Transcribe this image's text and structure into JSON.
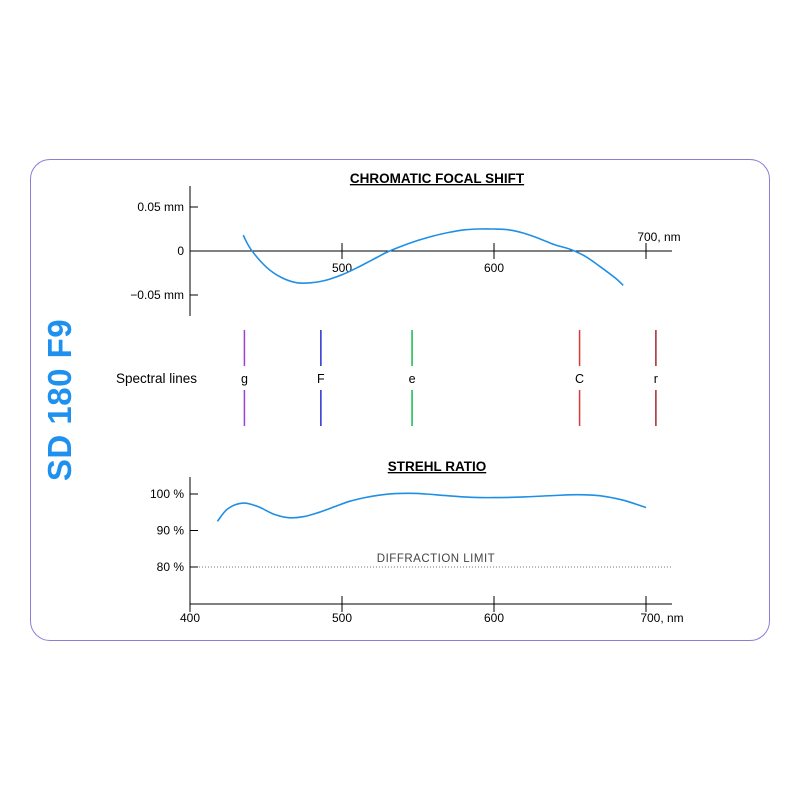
{
  "side_title": "SD 180 F9",
  "spectral": {
    "title": "Spectral lines",
    "lines": [
      {
        "label": "g",
        "wavelength": 435.8,
        "color": "#9b3fd8"
      },
      {
        "label": "F",
        "wavelength": 486.1,
        "color": "#2a2fd0"
      },
      {
        "label": "e",
        "wavelength": 546.1,
        "color": "#19b84a"
      },
      {
        "label": "C",
        "wavelength": 656.3,
        "color": "#d83a3a"
      },
      {
        "label": "r",
        "wavelength": 706.5,
        "color": "#a3282e"
      }
    ]
  },
  "chart_data": [
    {
      "type": "line",
      "title": "CHROMATIC FOCAL SHIFT",
      "xlabel": "",
      "ylabel": "",
      "xlim": [
        400,
        720
      ],
      "ylim": [
        -0.07,
        0.07
      ],
      "x_ticks": [
        500,
        600,
        700
      ],
      "x_tick_labels": [
        "500",
        "600",
        "700, nm"
      ],
      "y_ticks": [
        0.05,
        0,
        -0.05
      ],
      "y_tick_labels": [
        "0.05 mm",
        "0",
        "−0.05 mm"
      ],
      "series": [
        {
          "x": [
            435,
            440,
            450,
            460,
            470,
            480,
            490,
            500,
            510,
            520,
            530,
            540,
            550,
            560,
            570,
            580,
            590,
            600,
            610,
            620,
            630,
            640,
            650,
            660,
            670,
            680,
            685
          ],
          "y": [
            0.018,
            0.002,
            -0.018,
            -0.03,
            -0.036,
            -0.036,
            -0.033,
            -0.027,
            -0.019,
            -0.01,
            -0.001,
            0.006,
            0.012,
            0.017,
            0.021,
            0.024,
            0.025,
            0.025,
            0.024,
            0.02,
            0.014,
            0.007,
            0.002,
            -0.006,
            -0.018,
            -0.031,
            -0.039
          ]
        }
      ]
    },
    {
      "type": "line",
      "title": "STREHL RATIO",
      "xlabel": "",
      "ylabel": "",
      "xlim": [
        400,
        720
      ],
      "ylim": [
        70,
        105
      ],
      "x_ticks": [
        400,
        500,
        600,
        700
      ],
      "x_tick_labels": [
        "400",
        "500",
        "600",
        "700, nm"
      ],
      "y_ticks": [
        100,
        90,
        80
      ],
      "y_tick_labels": [
        "100 %",
        "90 %",
        "80 %"
      ],
      "annotation": "DIFFRACTION  LIMIT",
      "reference_line": 80,
      "series": [
        {
          "x": [
            418,
            425,
            435,
            445,
            455,
            465,
            475,
            485,
            495,
            505,
            515,
            525,
            535,
            545,
            555,
            570,
            585,
            600,
            620,
            640,
            655,
            670,
            685,
            700
          ],
          "y": [
            92.5,
            96,
            97.5,
            96.5,
            94.5,
            93.5,
            93.8,
            95,
            96.5,
            98,
            99,
            99.7,
            100.1,
            100.2,
            100,
            99.5,
            99.1,
            99,
            99.2,
            99.6,
            99.8,
            99.5,
            98.3,
            96.3
          ]
        }
      ]
    }
  ]
}
